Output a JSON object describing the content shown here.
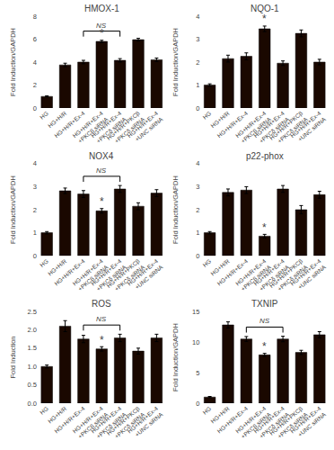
{
  "chart_data": [
    {
      "type": "bar",
      "title": "HMOX-1",
      "ylabel": "Fold Induction/GAPDH",
      "categories": [
        "HG",
        "HG+H/R",
        "HG+H/R+Ex-4",
        "HG+H/R+Ex-4\n+PKCβ siRNA",
        "HG+H/R+Ex-4\n+PKCδ siRNA",
        "HG+H/R+PKCβ\n+PKCδ siRNA",
        "HG+H/R+Ex-4\n+UNC siRNA"
      ],
      "values": [
        1.0,
        3.75,
        4.0,
        5.8,
        4.15,
        5.95,
        4.2
      ],
      "errors": [
        0.05,
        0.15,
        0.15,
        0.1,
        0.15,
        0.12,
        0.15
      ],
      "color": "#1a0800",
      "ylim": [
        0,
        8
      ],
      "yticks": [
        0,
        2,
        4,
        6,
        8
      ],
      "grid": false,
      "annotations": [
        {
          "text": "NS",
          "x_from": 2,
          "x_to": 4
        },
        {
          "text": "*",
          "x": 3
        }
      ]
    },
    {
      "type": "bar",
      "title": "NQO-1",
      "ylabel": "Fold Induction/GAPDH",
      "categories": [
        "HG",
        "HG+H/R",
        "HG+H/R+Ex-4",
        "HG+H/R+Ex-4\n+PKCβ siRNA",
        "HG+H/R+Ex-4\n+PKCδ siRNA",
        "HG+H/R+PKCβ\n+PKCδ siRNA",
        "HG+H/R+Ex-4\n+UNC siRNA"
      ],
      "values": [
        1.0,
        2.15,
        2.25,
        3.45,
        1.95,
        3.25,
        2.0
      ],
      "errors": [
        0.05,
        0.15,
        0.15,
        0.12,
        0.1,
        0.15,
        0.12
      ],
      "color": "#1a0800",
      "ylim": [
        0,
        4
      ],
      "yticks": [
        0,
        1,
        2,
        3,
        4
      ],
      "grid": false,
      "annotations": [
        {
          "text": "*",
          "x": 3
        }
      ]
    },
    {
      "type": "bar",
      "title": "NOX4",
      "ylabel": "Fold Induction/GAPDH",
      "categories": [
        "HG",
        "HG+H/R",
        "HG+H/R+Ex-4",
        "HG+H/R+Ex-4\n+PKCβ siRNA",
        "HG+H/R+Ex-4\n+PKCδ siRNA",
        "HG+H/R+PKCβ\n+PKCδ siRNA",
        "HG+H/R+Ex-4\n+UNC siRNA"
      ],
      "values": [
        1.0,
        2.82,
        2.68,
        1.95,
        2.9,
        2.15,
        2.72
      ],
      "errors": [
        0.05,
        0.12,
        0.15,
        0.1,
        0.15,
        0.15,
        0.15
      ],
      "color": "#1a0800",
      "ylim": [
        0,
        4
      ],
      "yticks": [
        0,
        1,
        2,
        3,
        4
      ],
      "grid": false,
      "annotations": [
        {
          "text": "NS",
          "x_from": 2,
          "x_to": 4
        },
        {
          "text": "*",
          "x": 3
        }
      ]
    },
    {
      "type": "bar",
      "title": "p22-phox",
      "ylabel": "Fold Induction/GAPDH",
      "categories": [
        "HG",
        "HG+H/R",
        "HG+H/R+Ex-4",
        "HG+H/R+Ex-4\n+PKCβ siRNA",
        "HG+H/R+Ex-4\n+PKCδ siRNA",
        "HG+H/R+PKCβ\n+PKCδ siRNA",
        "HG+H/R+Ex-4\n+UNC siRNA"
      ],
      "values": [
        1.0,
        2.75,
        2.85,
        0.85,
        2.9,
        2.0,
        2.65
      ],
      "errors": [
        0.05,
        0.15,
        0.15,
        0.08,
        0.15,
        0.18,
        0.15
      ],
      "color": "#1a0800",
      "ylim": [
        0,
        4
      ],
      "yticks": [
        0,
        1,
        2,
        3,
        4
      ],
      "grid": false,
      "annotations": [
        {
          "text": "*",
          "x": 3
        }
      ]
    },
    {
      "type": "bar",
      "title": "ROS",
      "ylabel": "Fold Induction",
      "categories": [
        "HG",
        "HG+H/R",
        "HG+H/R+Ex-4",
        "HG+H/R+Ex-4\n+PKCβ siRNA",
        "HG+H/R+Ex-4\n+PKCδ siRNA",
        "HG+H/R+PKCβ\n+PKCδ siRNA",
        "HG+H/R+Ex-4\n+UNC siRNA"
      ],
      "values": [
        1.0,
        2.1,
        1.75,
        1.48,
        1.78,
        1.42,
        1.78
      ],
      "errors": [
        0.04,
        0.15,
        0.1,
        0.06,
        0.1,
        0.08,
        0.1
      ],
      "color": "#1a0800",
      "ylim": [
        0,
        2.5
      ],
      "yticks": [
        {
          "value": 0,
          "label": "0.0"
        },
        0.5,
        {
          "value": 1,
          "label": "1.0"
        },
        1.5,
        {
          "value": 2,
          "label": "2.0"
        },
        2.5
      ],
      "grid": false,
      "annotations": [
        {
          "text": "NS",
          "x_from": 2,
          "x_to": 4
        },
        {
          "text": "*",
          "x": 3
        }
      ]
    },
    {
      "type": "bar",
      "title": "TXNIP",
      "ylabel": "Fold Induction/GAPDH",
      "categories": [
        "HG",
        "HG+H/R",
        "HG+H/R+Ex-4",
        "HG+H/R+Ex-4\n+PKCβ siRNA",
        "HG+H/R+Ex-4\n+PKCδ siRNA",
        "HG+H/R+PKCβ\n+PKCδ siRNA",
        "HG+H/R+Ex-4\n+UNC siRNA"
      ],
      "values": [
        1.0,
        12.8,
        10.5,
        7.9,
        10.5,
        8.3,
        11.2
      ],
      "errors": [
        0.1,
        0.5,
        0.4,
        0.25,
        0.45,
        0.35,
        0.5
      ],
      "color": "#1a0800",
      "ylim": [
        0,
        15
      ],
      "yticks": [
        0,
        5,
        10,
        15
      ],
      "grid": false,
      "annotations": [
        {
          "text": "NS",
          "x_from": 2,
          "x_to": 4
        },
        {
          "text": "*",
          "x": 3
        }
      ]
    }
  ]
}
